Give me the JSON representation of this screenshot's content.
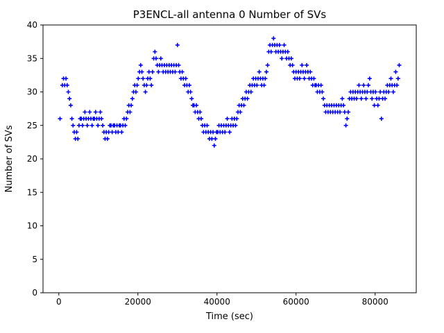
{
  "chart_data": {
    "type": "scatter",
    "title": "P3ENCL-all antenna 0 Number of SVs",
    "xlabel": "Time (sec)",
    "ylabel": "Number of SVs",
    "marker": "+",
    "marker_color": "#0000ff",
    "grid": false,
    "legend": "none",
    "xlim": [
      -4000,
      90400
    ],
    "ylim": [
      0,
      40
    ],
    "x_ticks": [
      0,
      20000,
      40000,
      60000,
      80000
    ],
    "y_ticks": [
      0,
      5,
      10,
      15,
      20,
      25,
      30,
      35,
      40
    ],
    "series": [
      {
        "name": "Number of SVs",
        "t_start": 900,
        "t_step": 300,
        "values": [
          31,
          32,
          31,
          32,
          31,
          30,
          29,
          28,
          26,
          25,
          24,
          23,
          24,
          23,
          25,
          26,
          26,
          25,
          26,
          27,
          26,
          25,
          26,
          27,
          26,
          25,
          26,
          26,
          27,
          26,
          25,
          26,
          27,
          26,
          25,
          24,
          23,
          24,
          23,
          24,
          25,
          25,
          24,
          25,
          25,
          24,
          25,
          24,
          25,
          25,
          24,
          25,
          26,
          25,
          26,
          27,
          28,
          27,
          28,
          29,
          30,
          31,
          30,
          31,
          32,
          33,
          34,
          33,
          32,
          31,
          30,
          31,
          32,
          33,
          32,
          31,
          33,
          35,
          36,
          35,
          34,
          33,
          34,
          35,
          34,
          33,
          34,
          33,
          34,
          33,
          34,
          33,
          34,
          33,
          34,
          33,
          34,
          37,
          34,
          33,
          32,
          33,
          32,
          31,
          32,
          31,
          30,
          31,
          30,
          29,
          28,
          28,
          27,
          28,
          27,
          26,
          27,
          26,
          25,
          24,
          25,
          24,
          25,
          24,
          23,
          24,
          23,
          24,
          22,
          23,
          24,
          24,
          25,
          24,
          25,
          24,
          25,
          24,
          25,
          26,
          25,
          24,
          25,
          26,
          25,
          26,
          25,
          26,
          27,
          28,
          27,
          28,
          29,
          28,
          29,
          30,
          29,
          30,
          31,
          30,
          31,
          32,
          31,
          32,
          31,
          32,
          33,
          32,
          31,
          32,
          31,
          32,
          33,
          34,
          36,
          37,
          36,
          37,
          38,
          37,
          36,
          37,
          36,
          37,
          36,
          35,
          36,
          37,
          36,
          35,
          36,
          35,
          34,
          35,
          34,
          33,
          32,
          33,
          32,
          33,
          32,
          33,
          34,
          33,
          32,
          33,
          34,
          33,
          32,
          33,
          32,
          31,
          32,
          31,
          31,
          30,
          31,
          30,
          31,
          30,
          29,
          28,
          27,
          28,
          27,
          28,
          27,
          28,
          27,
          28,
          27,
          28,
          27,
          28,
          27,
          28,
          29,
          28,
          27,
          25,
          26,
          27,
          29,
          30,
          29,
          30,
          29,
          30,
          29,
          30,
          31,
          30,
          29,
          30,
          31,
          30,
          29,
          30,
          31,
          32,
          30,
          29,
          30,
          28,
          30,
          29,
          28,
          29,
          30,
          26,
          29,
          30,
          29,
          30,
          31,
          30,
          31,
          32,
          31,
          30,
          31,
          33,
          31,
          32,
          34
        ],
        "extra_points": [
          [
            300,
            26
          ]
        ]
      }
    ]
  }
}
